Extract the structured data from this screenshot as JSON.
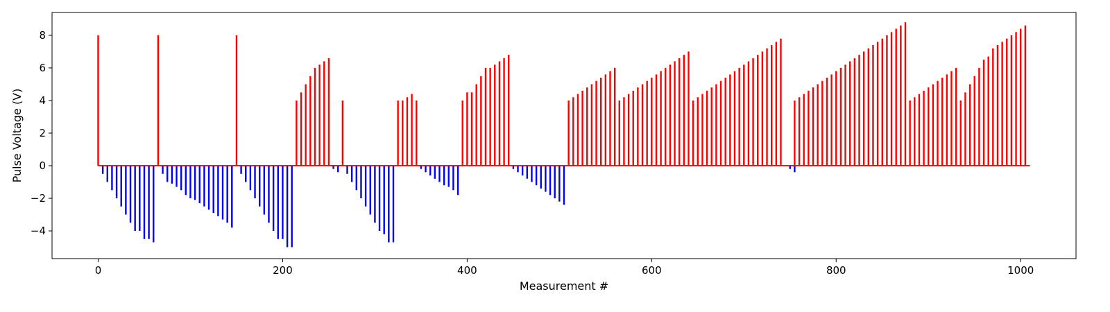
{
  "chart_data": {
    "type": "bar",
    "subtype": "stem",
    "xlabel": "Measurement #",
    "ylabel": "Pulse Voltage (V)",
    "xlim": [
      -50,
      1060
    ],
    "ylim": [
      -5.7,
      9.4
    ],
    "xticks": [
      0,
      200,
      400,
      600,
      800,
      1000
    ],
    "yticks": [
      -4,
      -2,
      0,
      2,
      4,
      6,
      8
    ],
    "grid": false,
    "legend": "none",
    "colors": {
      "positive": "#ff0000",
      "negative": "#0000ff"
    },
    "baseline": {
      "x_start": 0,
      "x_end": 1010,
      "y": 0,
      "color": "#ff0000"
    },
    "series": [
      {
        "color": "#ff0000",
        "x": [
          0,
          65,
          150,
          215,
          220,
          225,
          230,
          235,
          240,
          245,
          250,
          265,
          325,
          330,
          335,
          340,
          345,
          395,
          400,
          405,
          410,
          415,
          420,
          425,
          430,
          435,
          440,
          445,
          510,
          515,
          520,
          525,
          530,
          535,
          540,
          545,
          550,
          555,
          560,
          565,
          570,
          575,
          580,
          585,
          590,
          595,
          600,
          605,
          610,
          615,
          620,
          625,
          630,
          635,
          640,
          645,
          650,
          655,
          660,
          665,
          670,
          675,
          680,
          685,
          690,
          695,
          700,
          705,
          710,
          715,
          720,
          725,
          730,
          735,
          740,
          755,
          760,
          765,
          770,
          775,
          780,
          785,
          790,
          795,
          800,
          805,
          810,
          815,
          820,
          825,
          830,
          835,
          840,
          845,
          850,
          855,
          860,
          865,
          870,
          875,
          880,
          885,
          890,
          895,
          900,
          905,
          910,
          915,
          920,
          925,
          930,
          935,
          940,
          945,
          950,
          955,
          960,
          965,
          970,
          975,
          980,
          985,
          990,
          995,
          1000,
          1005
        ],
        "values": [
          8,
          8,
          8,
          4,
          4.5,
          5,
          5.5,
          6,
          6.2,
          6.4,
          6.6,
          4,
          4,
          4,
          4.2,
          4.4,
          4,
          4,
          4.5,
          4.5,
          5,
          5.5,
          6,
          6,
          6.2,
          6.4,
          6.6,
          6.8,
          4,
          4.2,
          4.4,
          4.6,
          4.8,
          5,
          5.2,
          5.4,
          5.6,
          5.8,
          6,
          4,
          4.2,
          4.4,
          4.6,
          4.8,
          5,
          5.2,
          5.4,
          5.6,
          5.8,
          6,
          6.2,
          6.4,
          6.6,
          6.8,
          7,
          4,
          4.2,
          4.4,
          4.6,
          4.8,
          5,
          5.2,
          5.4,
          5.6,
          5.8,
          6,
          6.2,
          6.4,
          6.6,
          6.8,
          7,
          7.2,
          7.4,
          7.6,
          7.8,
          4,
          4.2,
          4.4,
          4.6,
          4.8,
          5,
          5.2,
          5.4,
          5.6,
          5.8,
          6,
          6.2,
          6.4,
          6.6,
          6.8,
          7,
          7.2,
          7.4,
          7.6,
          7.8,
          8,
          8.2,
          8.4,
          8.6,
          8.8,
          4,
          4.2,
          4.4,
          4.6,
          4.8,
          5,
          5.2,
          5.4,
          5.6,
          5.8,
          6,
          4,
          4.5,
          5,
          5.5,
          6,
          6.5,
          6.7,
          7.2,
          7.4,
          7.6,
          7.8,
          8,
          8.2,
          8.4,
          8.6
        ]
      },
      {
        "color": "#0000ff",
        "x": [
          5,
          10,
          15,
          20,
          25,
          30,
          35,
          40,
          45,
          50,
          55,
          60,
          70,
          75,
          80,
          85,
          90,
          95,
          100,
          105,
          110,
          115,
          120,
          125,
          130,
          135,
          140,
          145,
          155,
          160,
          165,
          170,
          175,
          180,
          185,
          190,
          195,
          200,
          205,
          210,
          255,
          260,
          270,
          275,
          280,
          285,
          290,
          295,
          300,
          305,
          310,
          315,
          320,
          350,
          355,
          360,
          365,
          370,
          375,
          380,
          385,
          390,
          450,
          455,
          460,
          465,
          470,
          475,
          480,
          485,
          490,
          495,
          500,
          505,
          750,
          755
        ],
        "values": [
          -0.5,
          -1,
          -1.5,
          -2,
          -2.5,
          -3,
          -3.5,
          -4,
          -4,
          -4.5,
          -4.5,
          -4.7,
          -0.5,
          -1,
          -1.1,
          -1.3,
          -1.5,
          -1.8,
          -2,
          -2.1,
          -2.3,
          -2.5,
          -2.7,
          -2.9,
          -3.1,
          -3.3,
          -3.5,
          -3.8,
          -0.5,
          -1,
          -1.5,
          -2,
          -2.5,
          -3,
          -3.5,
          -4,
          -4.5,
          -4.5,
          -5,
          -5,
          -0.2,
          -0.4,
          -0.5,
          -1,
          -1.5,
          -2,
          -2.5,
          -3,
          -3.5,
          -4,
          -4.2,
          -4.7,
          -4.7,
          -0.2,
          -0.4,
          -0.6,
          -0.8,
          -1,
          -1.2,
          -1.3,
          -1.5,
          -1.8,
          -0.2,
          -0.4,
          -0.6,
          -0.8,
          -1,
          -1.2,
          -1.4,
          -1.6,
          -1.8,
          -2,
          -2.2,
          -2.4,
          -0.2,
          -0.4
        ]
      }
    ]
  }
}
